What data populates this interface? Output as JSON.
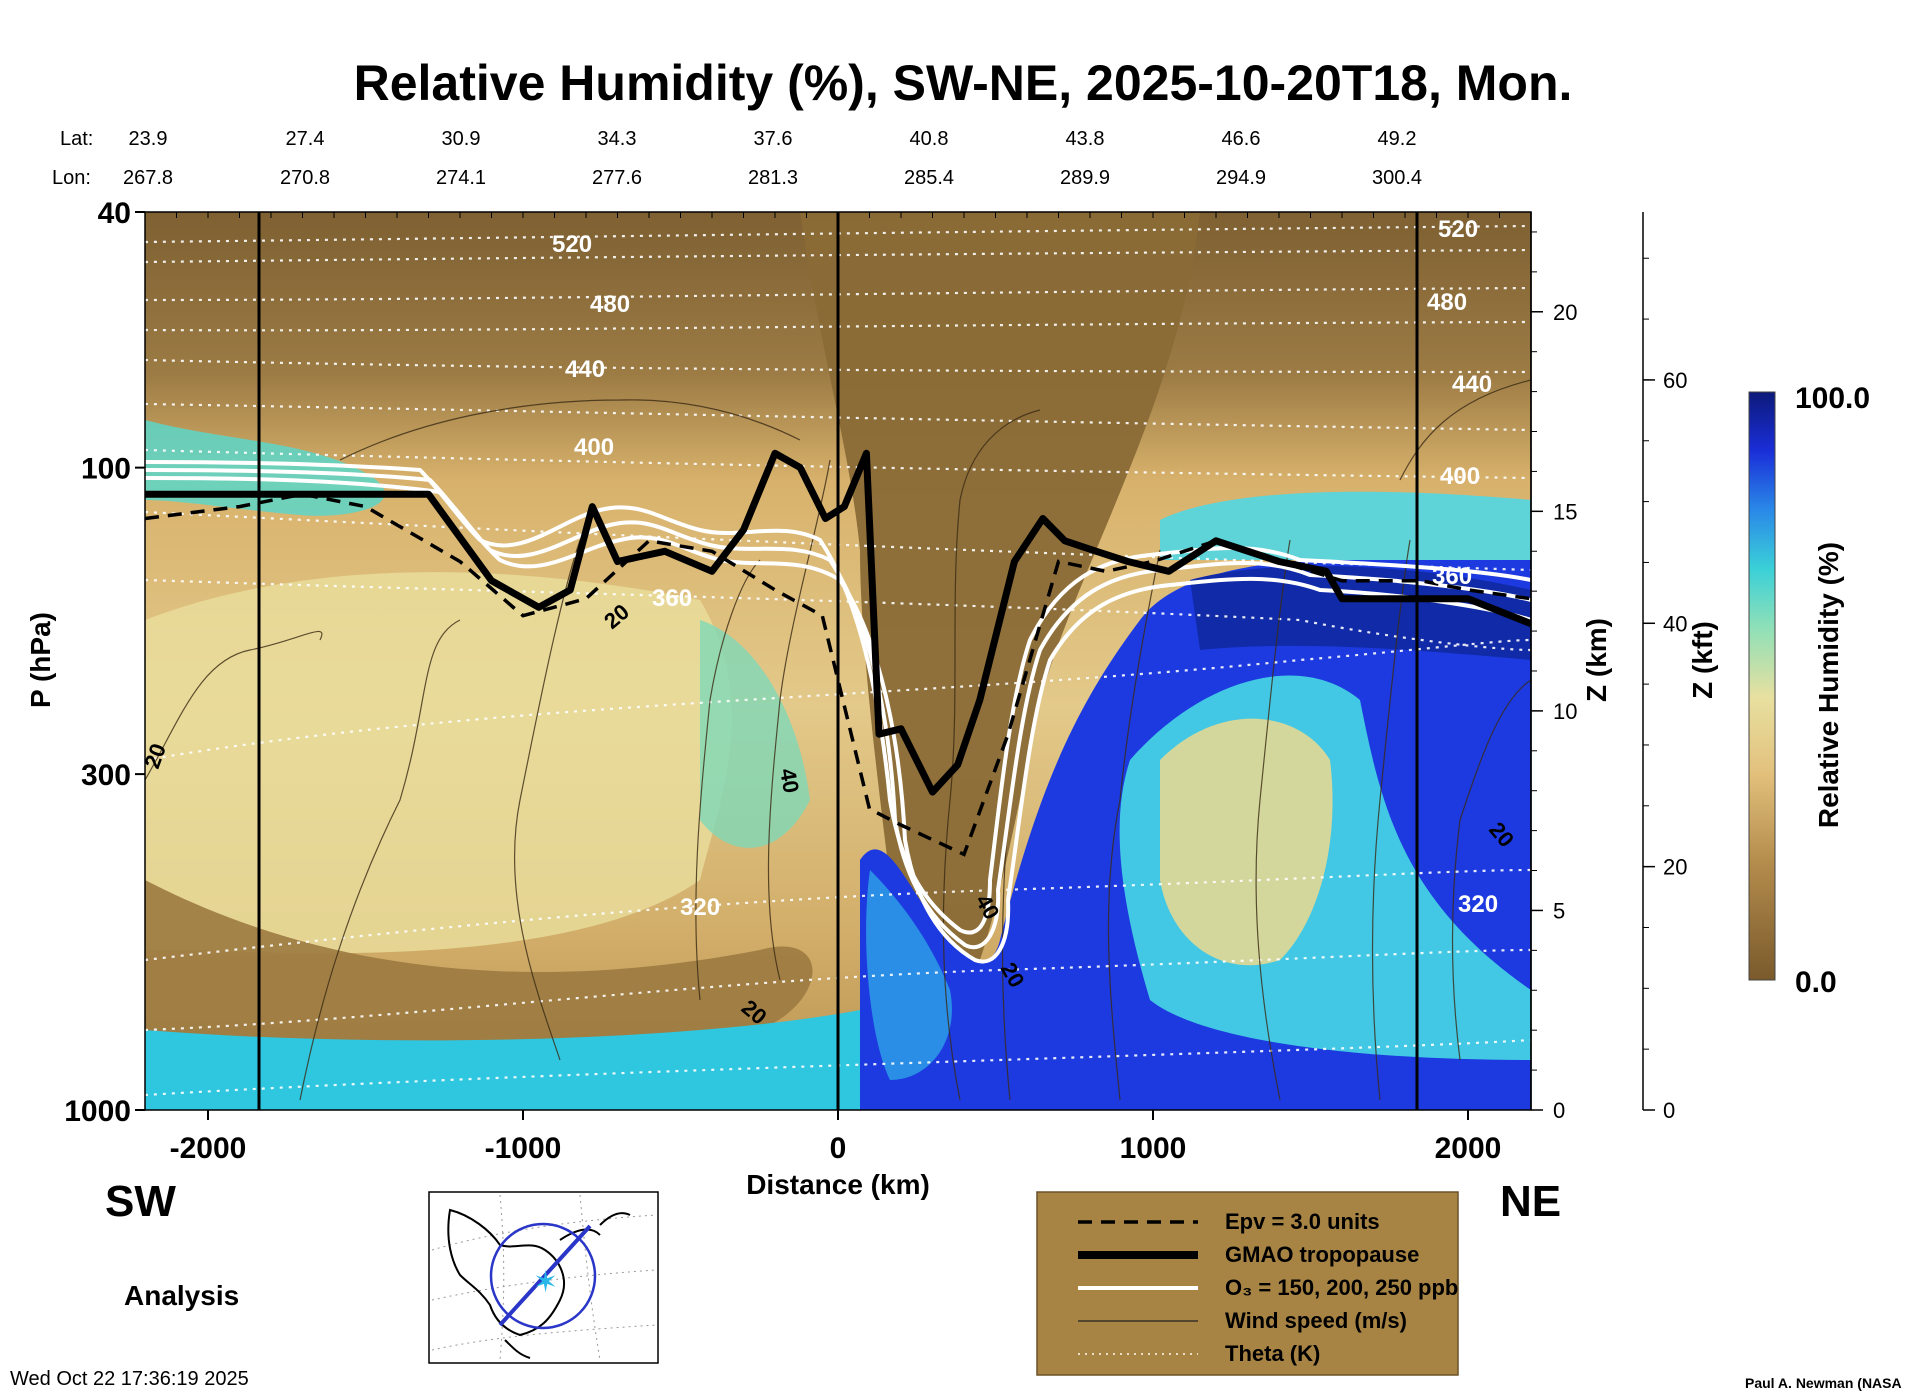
{
  "chart_data": {
    "type": "heatmap",
    "title": "Relative Humidity (%), SW-NE, 2025-10-20T18, Mon.",
    "header": {
      "lat_label": "Lat:",
      "lon_label": "Lon:",
      "lats": [
        "23.9",
        "27.4",
        "30.9",
        "34.3",
        "37.6",
        "40.8",
        "43.8",
        "46.6",
        "49.2"
      ],
      "lons": [
        "267.8",
        "270.8",
        "274.1",
        "277.6",
        "281.3",
        "285.4",
        "289.9",
        "294.9",
        "300.4"
      ]
    },
    "xlabel": "Distance (km)",
    "ylabel": "P (hPa)",
    "xlim": [
      -2200,
      2200
    ],
    "ylim": [
      1000,
      40
    ],
    "x_ticks": [
      -2000,
      -1000,
      0,
      1000,
      2000
    ],
    "x_tick_labels": [
      "-2000",
      "-1000",
      "0",
      "1000",
      "2000"
    ],
    "y_ticks": [
      40,
      100,
      300,
      1000
    ],
    "y_tick_labels": [
      "40",
      "100",
      "300",
      "1000"
    ],
    "z_km_label": "Z (km)",
    "z_km_ticks": [
      "0",
      "5",
      "10",
      "15",
      "20"
    ],
    "z_kft_label": "Z (kft)",
    "z_kft_ticks": [
      "0",
      "20",
      "40",
      "60"
    ],
    "colorbar": {
      "label": "Relative Humidity (%)",
      "min_label": "0.0",
      "max_label": "100.0",
      "min": 0,
      "max": 100
    },
    "series": [
      {
        "name": "GMAO tropopause",
        "x": [
          -2200,
          -1800,
          -1300,
          -1100,
          -950,
          -850,
          -780,
          -700,
          -550,
          -400,
          -300,
          -200,
          -120,
          -40,
          20,
          90,
          130,
          200,
          300,
          380,
          450,
          560,
          650,
          720,
          820,
          920,
          1050,
          1200,
          1400,
          1550,
          1600,
          1850,
          2000,
          2200
        ],
        "p": [
          110,
          110,
          110,
          150,
          165,
          155,
          115,
          140,
          135,
          145,
          125,
          95,
          100,
          120,
          115,
          95,
          260,
          255,
          320,
          290,
          230,
          140,
          120,
          130,
          135,
          140,
          145,
          130,
          140,
          145,
          160,
          160,
          160,
          175
        ]
      },
      {
        "name": "Epv = 3.0 units",
        "x": [
          -2200,
          -1900,
          -1700,
          -1500,
          -1200,
          -1000,
          -800,
          -600,
          -400,
          -200,
          -50,
          100,
          200,
          400,
          540,
          700,
          850,
          1000,
          1200,
          1400,
          1600,
          1850,
          2000,
          2200
        ],
        "p": [
          120,
          115,
          110,
          115,
          140,
          170,
          160,
          130,
          135,
          155,
          170,
          340,
          360,
          400,
          260,
          140,
          145,
          140,
          130,
          140,
          150,
          150,
          155,
          160
        ]
      }
    ],
    "theta_labels": [
      "520",
      "480",
      "440",
      "400",
      "360",
      "320",
      "520",
      "480",
      "440",
      "400",
      "360",
      "320"
    ],
    "wind_labels": [
      "20",
      "20",
      "40",
      "20",
      "20",
      "40",
      "20"
    ],
    "annotations": {
      "left": "SW",
      "right": "NE",
      "analysis": "Analysis",
      "timestamp": "Wed Oct 22 17:36:19 2025",
      "credit": "Paul A. Newman (NASA"
    },
    "legend": [
      {
        "label": "Epv = 3.0 units",
        "style": "dashed"
      },
      {
        "label": "GMAO tropopause",
        "style": "thick"
      },
      {
        "label": "O₃ = 150, 200, 250 ppb",
        "style": "white"
      },
      {
        "label": "Wind speed (m/s)",
        "style": "thin"
      },
      {
        "label": "Theta (K)",
        "style": "dotted"
      }
    ]
  },
  "colors": {
    "dry_brown": "#8a6a3a",
    "tan": "#c9a35e",
    "light_tan": "#e6c98a",
    "yellow": "#eadf9a",
    "cyan": "#48d6d6",
    "blue": "#1836d8",
    "navy": "#0a1a8c",
    "legend_bg": "#a88444"
  }
}
